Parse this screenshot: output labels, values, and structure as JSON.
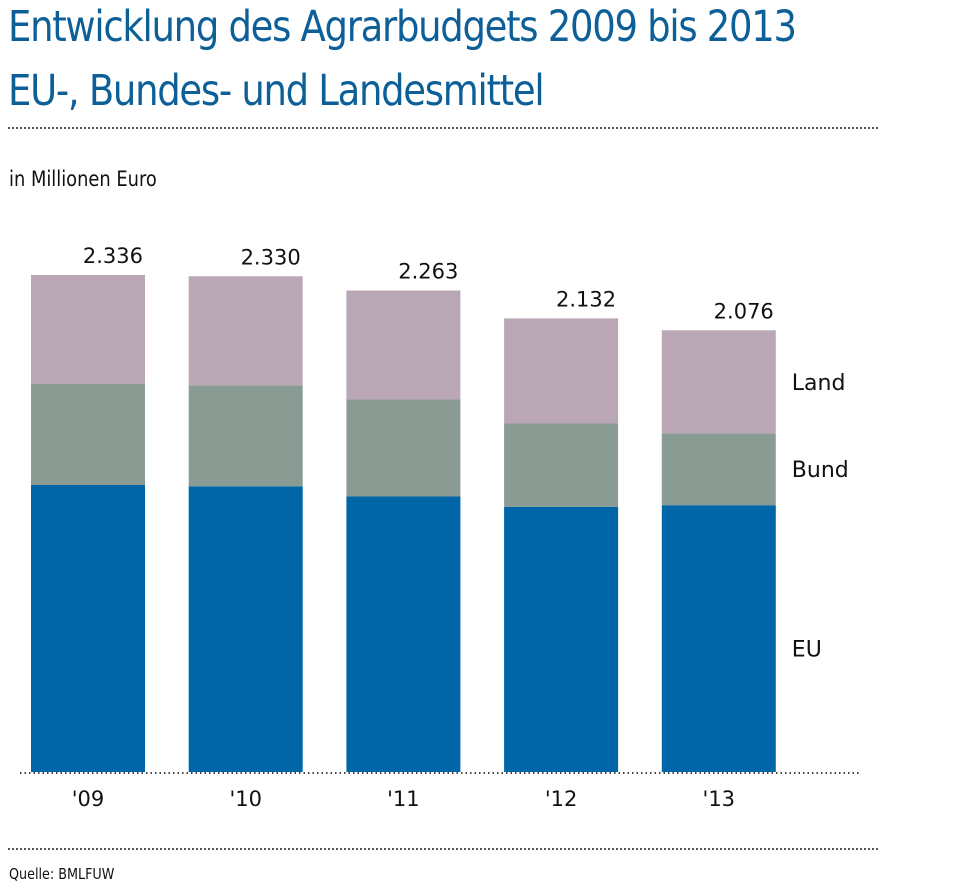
{
  "title_line1": "Entwicklung des Agrarbudgets 2009 bis 2013",
  "title_line2": "EU-, Bundes- und Landesmittel",
  "unit_label": "in Millionen Euro",
  "source": "Quelle: BMLFUW",
  "colors": {
    "title": "#0d5f98",
    "EU": "#0066a8",
    "Bund": "#8a9b94",
    "Land": "#b9a7b6"
  },
  "chart_data": {
    "type": "bar",
    "stacked": true,
    "title": "Entwicklung des Agrarbudgets 2009 bis 2013 – EU-, Bundes- und Landesmittel",
    "ylabel": "in Millionen Euro",
    "xlabel": "",
    "categories": [
      "'09",
      "'10",
      "'11",
      "'12",
      "'13"
    ],
    "totals": [
      "2.336",
      "2.330",
      "2.263",
      "2.132",
      "2.076"
    ],
    "total_values": [
      2336,
      2330,
      2263,
      2132,
      2076
    ],
    "series": [
      {
        "name": "EU",
        "values": [
          1349,
          1343,
          1295,
          1246,
          1254
        ]
      },
      {
        "name": "Bund",
        "values": [
          475,
          475,
          456,
          392,
          338
        ]
      },
      {
        "name": "Land",
        "values": [
          512,
          512,
          512,
          494,
          484
        ]
      }
    ],
    "ylim": [
      0,
      2336
    ],
    "grid": false,
    "legend": "right, inline labels beside last bar"
  }
}
